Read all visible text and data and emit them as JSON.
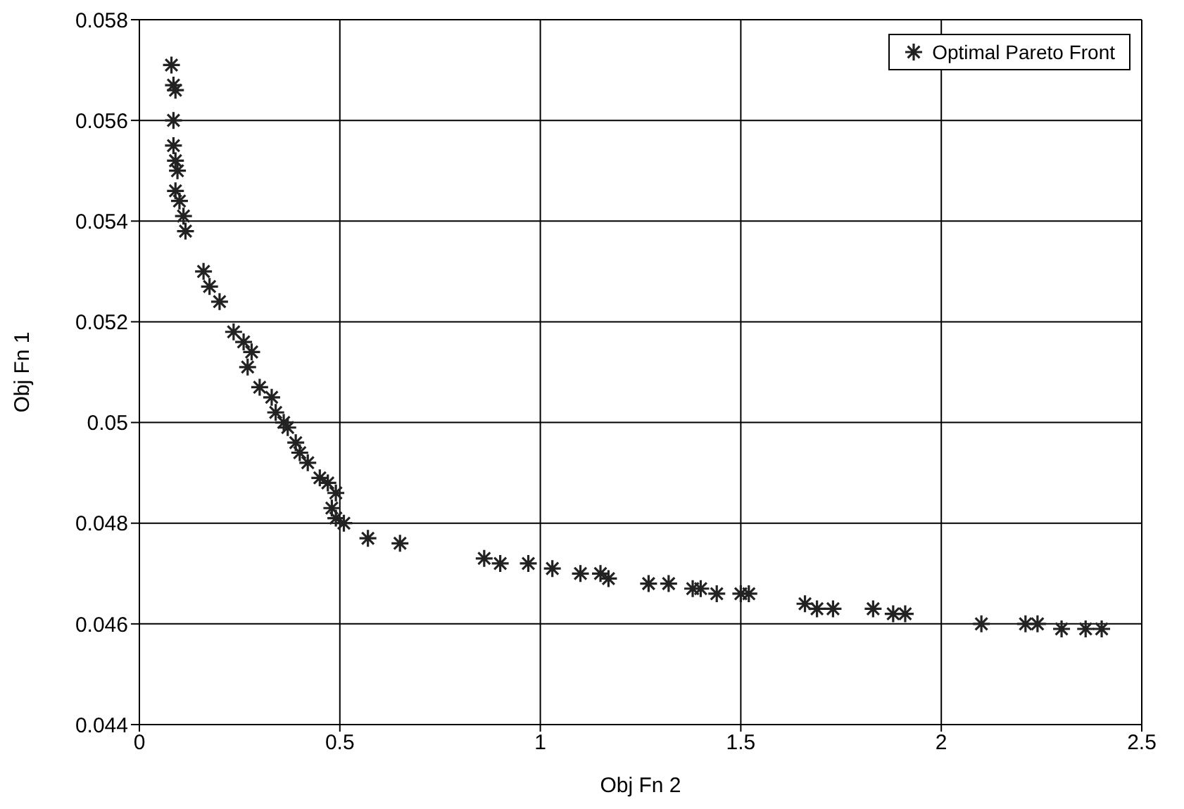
{
  "chart_data": {
    "type": "scatter",
    "xlabel": "Obj Fn 2",
    "ylabel": "Obj Fn 1",
    "xlim": [
      0,
      2.5
    ],
    "xticks": [
      0,
      0.5,
      1,
      1.5,
      2,
      2.5
    ],
    "ylim": [
      0.044,
      0.058
    ],
    "yticks": [
      0.044,
      0.046,
      0.048,
      0.05,
      0.052,
      0.054,
      0.056,
      0.058
    ],
    "grid": true,
    "legend": "top right",
    "marker": "cross",
    "series": [
      {
        "name": "Optimal Pareto Front",
        "color": "#222222",
        "x": [
          0.08,
          0.085,
          0.09,
          0.085,
          0.085,
          0.09,
          0.095,
          0.09,
          0.1,
          0.11,
          0.115,
          0.16,
          0.175,
          0.2,
          0.235,
          0.26,
          0.28,
          0.27,
          0.3,
          0.33,
          0.34,
          0.36,
          0.37,
          0.39,
          0.4,
          0.42,
          0.45,
          0.47,
          0.49,
          0.48,
          0.49,
          0.51,
          0.57,
          0.65,
          0.86,
          0.9,
          0.97,
          1.03,
          1.1,
          1.15,
          1.17,
          1.27,
          1.32,
          1.38,
          1.4,
          1.44,
          1.5,
          1.52,
          1.66,
          1.69,
          1.73,
          1.83,
          1.88,
          1.91,
          2.1,
          2.21,
          2.24,
          2.3,
          2.36,
          2.4
        ],
        "values": [
          0.0571,
          0.0567,
          0.0566,
          0.056,
          0.0555,
          0.0552,
          0.055,
          0.0546,
          0.0544,
          0.0541,
          0.0538,
          0.053,
          0.0527,
          0.0524,
          0.0518,
          0.0516,
          0.0514,
          0.0511,
          0.0507,
          0.0505,
          0.0502,
          0.05,
          0.0499,
          0.0496,
          0.0494,
          0.0492,
          0.0489,
          0.0488,
          0.0486,
          0.0483,
          0.0481,
          0.048,
          0.0477,
          0.0476,
          0.0473,
          0.0472,
          0.0472,
          0.0471,
          0.047,
          0.047,
          0.0469,
          0.0468,
          0.0468,
          0.0467,
          0.0467,
          0.0466,
          0.0466,
          0.0466,
          0.0464,
          0.0463,
          0.0463,
          0.0463,
          0.0462,
          0.0462,
          0.046,
          0.046,
          0.046,
          0.0459,
          0.0459,
          0.0459
        ]
      }
    ]
  }
}
